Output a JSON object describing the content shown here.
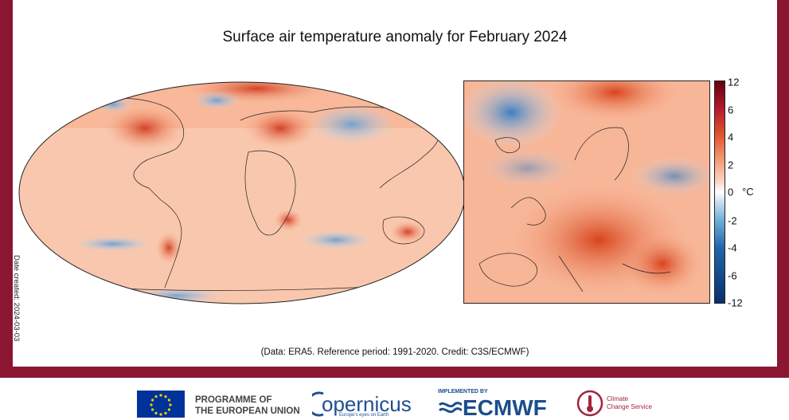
{
  "header": {
    "title": "Surface air temperature anomaly for February 2024"
  },
  "sidebar": {
    "date_created": "Date created: 2024-03-03"
  },
  "footer_note": {
    "credit": "(Data: ERA5. Reference period: 1991-2020. Credit: C3S/ECMWF)"
  },
  "colorbar": {
    "ticks": [
      "12",
      "6",
      "4",
      "2",
      "0",
      "-2",
      "-4",
      "-6",
      "-12"
    ],
    "unit": "°C",
    "colors": [
      "#08306b",
      "#2166ac",
      "#6baed6",
      "#c6dbef",
      "#ffffff",
      "#fcd2bf",
      "#f4a582",
      "#e4572e",
      "#b2182b",
      "#67000d"
    ]
  },
  "logos": {
    "eu_line1": "PROGRAMME OF",
    "eu_line2": "THE EUROPEAN UNION",
    "copernicus": "opernicus",
    "copernicus_tagline": "Europe's eyes on Earth",
    "implemented_by": "IMPLEMENTED BY",
    "ecmwf": "ECMWF",
    "climate_line1": "Climate",
    "climate_line2": "Change Service"
  },
  "colors": {
    "frame": "#8b1631",
    "warm": "#e4572e",
    "cool": "#6baed6",
    "eu_blue": "#003399",
    "copernicus_blue": "#1f4e91",
    "ecmwf_blue": "#1a4e8c"
  }
}
